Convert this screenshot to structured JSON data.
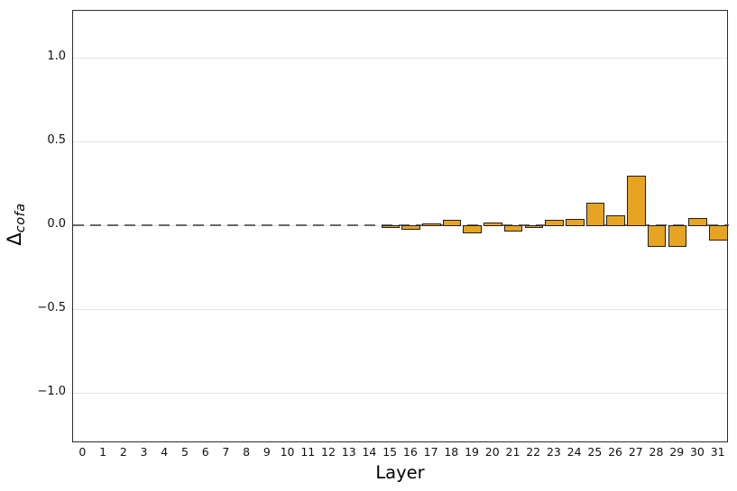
{
  "figure": {
    "xlabel": "Layer",
    "ylabel_main": "Δ",
    "ylabel_sub": "cofa"
  },
  "chart_data": {
    "type": "bar",
    "title": "",
    "xlabel": "Layer",
    "ylabel": "Δ_cofa",
    "categories": [
      "0",
      "1",
      "2",
      "3",
      "4",
      "5",
      "6",
      "7",
      "8",
      "9",
      "10",
      "11",
      "12",
      "13",
      "14",
      "15",
      "16",
      "17",
      "18",
      "19",
      "20",
      "21",
      "22",
      "23",
      "24",
      "25",
      "26",
      "27",
      "28",
      "29",
      "30",
      "31"
    ],
    "values": [
      0,
      0,
      0,
      0,
      0,
      0,
      0,
      0,
      0,
      0,
      0,
      0,
      0,
      0,
      0,
      -0.005,
      -0.018,
      0.004,
      0.025,
      -0.035,
      0.008,
      -0.025,
      -0.004,
      0.025,
      0.032,
      0.13,
      0.055,
      0.29,
      -0.12,
      -0.12,
      0.035,
      -0.08
    ],
    "ylim": [
      -1.3,
      1.28
    ],
    "ytick_values": [
      1.0,
      0.5,
      0.0,
      -0.5,
      -1.0
    ],
    "ytick_labels": [
      "1.0",
      "0.5",
      "0.0",
      "−0.5",
      "−1.0"
    ],
    "grid": "horizontal-only",
    "legend": "none",
    "zero_line_style": "dashed",
    "colors": {
      "bar_fill": "#E7A423",
      "bar_edge": "#1f1f1f",
      "grid_line": "#e3e3e3",
      "zero_line": "#3a3a3a",
      "spine": "#2b2b2b"
    }
  }
}
